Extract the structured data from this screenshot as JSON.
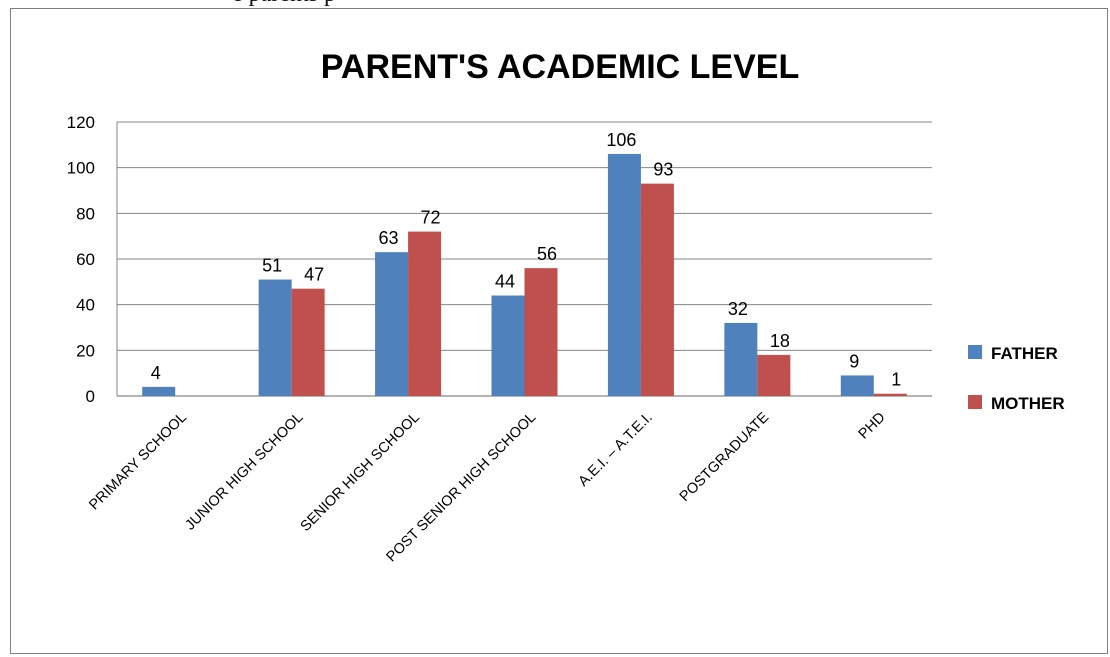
{
  "caption_fragment": "e parents p",
  "chart_data": {
    "type": "bar",
    "title": "PARENT'S ACADEMIC LEVEL",
    "xlabel": "",
    "ylabel": "",
    "categories": [
      "PRIMARY SCHOOL",
      "JUNIOR HIGH SCHOOL",
      "SENIOR HIGH SCHOOL",
      "POST SENIOR HIGH SCHOOL",
      "A.E.I. – A.T.E.I.",
      "POSTGRADUATE",
      "PHD"
    ],
    "series": [
      {
        "name": "FATHER",
        "color": "#4f81bd",
        "values": [
          4,
          51,
          63,
          44,
          106,
          32,
          9
        ]
      },
      {
        "name": "MOTHER",
        "color": "#c0504d",
        "values": [
          null,
          47,
          72,
          56,
          93,
          18,
          1
        ]
      }
    ],
    "ylim": [
      0,
      120
    ],
    "yticks": [
      0,
      20,
      40,
      60,
      80,
      100,
      120
    ],
    "grid": true,
    "legend": "right"
  }
}
